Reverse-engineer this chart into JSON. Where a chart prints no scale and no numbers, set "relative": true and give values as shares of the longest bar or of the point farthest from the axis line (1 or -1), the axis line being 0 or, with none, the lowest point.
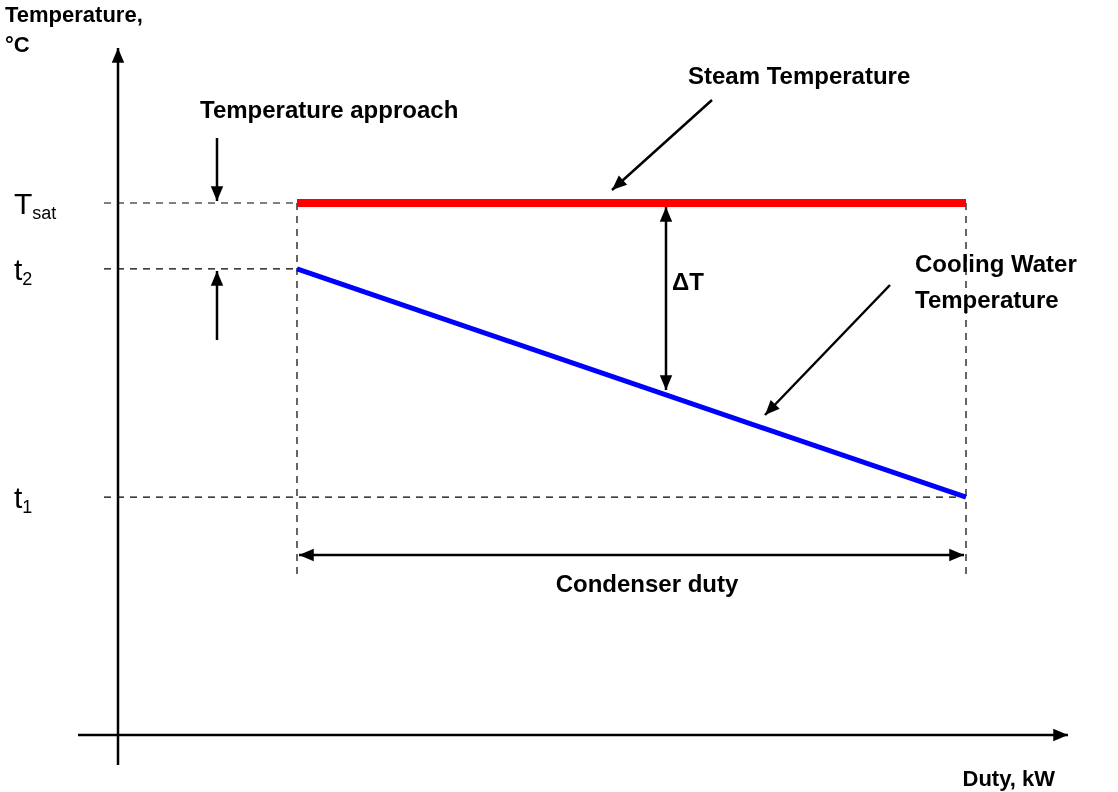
{
  "chart_data": {
    "type": "line",
    "relative": true,
    "categories": [
      null,
      null
    ],
    "series": [
      {
        "color": "#ff0000",
        "values": [
          1,
          1
        ]
      },
      {
        "color": "#0000ff",
        "values": [
          0.876,
          0.447
        ]
      }
    ],
    "xlabel": "Duty, kW",
    "ref_lines": [
      {
        "axis": "y",
        "value": 1,
        "label": "T$_{sat}$",
        "line_style": "dashed"
      },
      {
        "axis": "y",
        "value": 0.876,
        "label": "t$_{2}$",
        "line_style": "dashed"
      },
      {
        "axis": "y",
        "value": 0.447,
        "label": "t$_{1}$",
        "line_style": "dashed"
      }
    ],
    "annotations": [
      "Temperature approach",
      "Steam Temperature",
      "ΔT",
      "Cooling Water Temperature",
      "Condenser duty",
      "Temperature, °C"
    ],
    "marker": "none",
    "line_style": "solid",
    "grid": false
  }
}
